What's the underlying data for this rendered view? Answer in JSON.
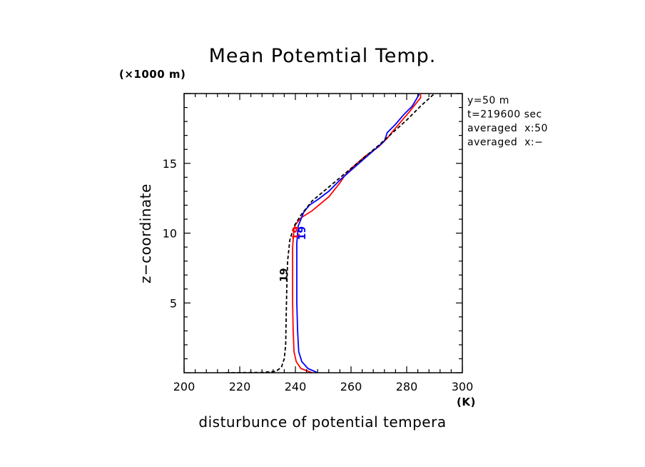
{
  "chart_data": {
    "type": "line",
    "title": "Mean Potemtial Temp.",
    "xlabel": "disturbunce of potential tempera",
    "ylabel": "z−coordinate",
    "x_unit": "(K)",
    "y_unit": "(×1000 m)",
    "xlim": [
      200,
      300
    ],
    "ylim": [
      0,
      20
    ],
    "x_ticks": [
      200,
      220,
      240,
      260,
      280,
      300
    ],
    "y_ticks": [
      5,
      10,
      15
    ],
    "info_lines": [
      "y=50 m",
      "t=219600 sec",
      "averaged  x:50",
      "averaged  x:−"
    ],
    "series": [
      {
        "color": "#ff0000",
        "dash": "solid",
        "label": "19",
        "label_at": [
          240.5,
          10
        ],
        "points": [
          [
            246,
            0
          ],
          [
            242,
            0.3
          ],
          [
            240.3,
            0.8
          ],
          [
            239.5,
            1.5
          ],
          [
            239.2,
            3
          ],
          [
            239,
            5
          ],
          [
            239,
            7
          ],
          [
            239,
            9
          ],
          [
            239.5,
            10.3
          ],
          [
            240,
            10.6
          ],
          [
            242,
            11.1
          ],
          [
            246,
            11.6
          ],
          [
            249,
            12.1
          ],
          [
            252,
            12.6
          ],
          [
            254,
            13.1
          ],
          [
            256,
            13.6
          ],
          [
            258,
            14.2
          ],
          [
            261,
            14.8
          ],
          [
            265,
            15.5
          ],
          [
            270,
            16.2
          ],
          [
            273,
            16.8
          ],
          [
            275,
            17.3
          ],
          [
            278,
            18
          ],
          [
            281,
            18.7
          ],
          [
            283,
            19.2
          ],
          [
            285,
            19.7
          ],
          [
            285,
            19.95
          ]
        ]
      },
      {
        "color": "#0000ff",
        "dash": "solid",
        "label": "19",
        "label_at": [
          242.5,
          10
        ],
        "points": [
          [
            248,
            0
          ],
          [
            244.5,
            0.3
          ],
          [
            242.3,
            0.8
          ],
          [
            241.2,
            1.5
          ],
          [
            240.8,
            3
          ],
          [
            240.5,
            5
          ],
          [
            240.5,
            7
          ],
          [
            240.5,
            9.3
          ],
          [
            241,
            10.5
          ],
          [
            242,
            11
          ],
          [
            243,
            11.5
          ],
          [
            245,
            12
          ],
          [
            248,
            12.4
          ],
          [
            252,
            13
          ],
          [
            256,
            13.8
          ],
          [
            260,
            14.5
          ],
          [
            264,
            15.2
          ],
          [
            268,
            15.9
          ],
          [
            272,
            16.6
          ],
          [
            273,
            17.2
          ],
          [
            276,
            17.8
          ],
          [
            279,
            18.5
          ],
          [
            282,
            19.1
          ],
          [
            283.5,
            19.6
          ],
          [
            284.5,
            19.95
          ]
        ]
      },
      {
        "color": "#000000",
        "dash": "dashed",
        "label": "19",
        "label_at": [
          236,
          7
        ],
        "points": [
          [
            215,
            0
          ],
          [
            228,
            0.02
          ],
          [
            233,
            0.1
          ],
          [
            235,
            0.4
          ],
          [
            236,
            1
          ],
          [
            236.5,
            2
          ],
          [
            236.7,
            4
          ],
          [
            236.9,
            6
          ],
          [
            237.2,
            8
          ],
          [
            238,
            9.5
          ],
          [
            239.5,
            10.5
          ],
          [
            242,
            11.3
          ],
          [
            246,
            12.3
          ],
          [
            252,
            13.3
          ],
          [
            258,
            14.3
          ],
          [
            264,
            15.3
          ],
          [
            270,
            16.3
          ],
          [
            275,
            17.2
          ],
          [
            280,
            18.1
          ],
          [
            285,
            19.1
          ],
          [
            290,
            20
          ]
        ]
      }
    ]
  }
}
